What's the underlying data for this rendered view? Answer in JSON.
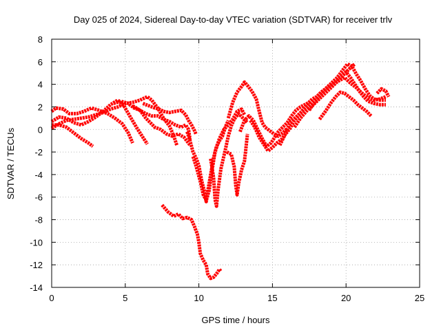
{
  "chart_data": {
    "type": "line",
    "title": "Day 025 of 2024, Sidereal Day-to-day VTEC variation (SDTVAR) for receiver trlv",
    "xlabel": "GPS time / hours",
    "ylabel": "SDTVAR / TECUs",
    "xlim": [
      0,
      25
    ],
    "ylim": [
      -14,
      8
    ],
    "xticks": [
      "0",
      "5",
      "10",
      "15",
      "20",
      "25"
    ],
    "yticks": [
      "-14",
      "-12",
      "-10",
      "-8",
      "-6",
      "-4",
      "-2",
      "0",
      "2",
      "4",
      "6",
      "8"
    ],
    "grid": true,
    "legend": "none",
    "marker": "plus",
    "color": "#ff0000",
    "series": [
      {
        "points": [
          [
            0,
            0.4
          ],
          [
            0.5,
            0.4
          ],
          [
            1,
            0.2
          ],
          [
            1.5,
            -0.3
          ],
          [
            2,
            -0.8
          ],
          [
            2.5,
            -1.2
          ],
          [
            2.8,
            -1.5
          ]
        ]
      },
      {
        "points": [
          [
            0,
            1.6
          ],
          [
            0.3,
            1.9
          ],
          [
            0.8,
            1.8
          ],
          [
            1.2,
            1.4
          ],
          [
            1.7,
            1.4
          ],
          [
            2.2,
            1.6
          ],
          [
            2.7,
            1.9
          ],
          [
            3.2,
            1.7
          ],
          [
            3.8,
            1.4
          ],
          [
            4.3,
            1.0
          ],
          [
            4.8,
            0.5
          ],
          [
            5.2,
            -0.3
          ],
          [
            5.5,
            -1.2
          ]
        ]
      },
      {
        "points": [
          [
            0,
            0.7
          ],
          [
            0.5,
            1.1
          ],
          [
            1,
            1.0
          ],
          [
            1.5,
            0.6
          ],
          [
            2,
            0.4
          ],
          [
            2.5,
            0.7
          ],
          [
            3,
            1.1
          ],
          [
            3.5,
            1.6
          ],
          [
            4,
            2.2
          ],
          [
            4.5,
            2.6
          ],
          [
            4.9,
            2.1
          ],
          [
            5.3,
            1.2
          ],
          [
            5.8,
            0.1
          ],
          [
            6.2,
            -0.7
          ],
          [
            6.5,
            -1.3
          ]
        ]
      },
      {
        "points": [
          [
            0,
            0.1
          ],
          [
            0.5,
            0.5
          ],
          [
            1,
            0.8
          ],
          [
            1.5,
            0.9
          ],
          [
            2,
            1.0
          ],
          [
            2.5,
            1.1
          ],
          [
            3,
            1.3
          ],
          [
            3.5,
            1.5
          ],
          [
            4,
            1.8
          ],
          [
            4.5,
            2.0
          ],
          [
            5,
            2.3
          ],
          [
            5.5,
            2.4
          ],
          [
            6,
            2.6
          ],
          [
            6.5,
            2.9
          ],
          [
            6.8,
            2.6
          ],
          [
            7.2,
            1.9
          ],
          [
            7.6,
            1.0
          ],
          [
            8,
            0.3
          ],
          [
            8.3,
            -0.6
          ],
          [
            8.5,
            -1.4
          ]
        ]
      },
      {
        "points": [
          [
            4.2,
            2.3
          ],
          [
            4.7,
            2.5
          ],
          [
            5.2,
            2.3
          ],
          [
            5.6,
            1.9
          ],
          [
            6,
            1.7
          ],
          [
            6.4,
            1.4
          ],
          [
            6.8,
            1.2
          ],
          [
            7.2,
            1.2
          ],
          [
            7.6,
            0.9
          ],
          [
            8,
            0.7
          ],
          [
            8.4,
            0.4
          ],
          [
            8.8,
            0.2
          ],
          [
            9.1,
            0.4
          ],
          [
            9.3,
            0.0
          ],
          [
            9.4,
            -0.9
          ]
        ]
      },
      {
        "points": [
          [
            5.5,
            2.1
          ],
          [
            6,
            1.7
          ],
          [
            6.4,
            1.0
          ],
          [
            6.7,
            0.6
          ],
          [
            7,
            0.2
          ],
          [
            7.4,
            0.0
          ],
          [
            7.8,
            -0.4
          ],
          [
            8.2,
            -0.6
          ],
          [
            8.6,
            -0.4
          ],
          [
            9,
            -0.7
          ],
          [
            9.4,
            -1.4
          ]
        ]
      },
      {
        "points": [
          [
            6.2,
            2.3
          ],
          [
            6.6,
            2.1
          ],
          [
            7,
            1.9
          ],
          [
            7.3,
            1.8
          ],
          [
            7.6,
            1.6
          ],
          [
            8,
            1.5
          ],
          [
            8.4,
            1.6
          ],
          [
            8.8,
            1.7
          ],
          [
            9.1,
            1.3
          ],
          [
            9.3,
            0.8
          ],
          [
            9.5,
            0.4
          ],
          [
            9.7,
            -0.1
          ],
          [
            9.8,
            -0.4
          ]
        ]
      },
      {
        "points": [
          [
            7.5,
            -6.7
          ],
          [
            7.9,
            -7.3
          ],
          [
            8.3,
            -7.7
          ],
          [
            8.6,
            -7.5
          ],
          [
            8.9,
            -7.9
          ],
          [
            9.2,
            -7.8
          ],
          [
            9.5,
            -8.0
          ],
          [
            9.7,
            -8.6
          ],
          [
            9.9,
            -9.3
          ],
          [
            10,
            -10.0
          ],
          [
            10.1,
            -11.0
          ],
          [
            10.3,
            -11.6
          ],
          [
            10.5,
            -12.0
          ],
          [
            10.6,
            -12.8
          ],
          [
            10.8,
            -13.2
          ],
          [
            11,
            -13.1
          ],
          [
            11.2,
            -12.8
          ],
          [
            11.4,
            -12.4
          ],
          [
            11.5,
            -12.6
          ]
        ]
      },
      {
        "points": [
          [
            9.2,
            -0.2
          ],
          [
            9.4,
            -1.0
          ],
          [
            9.6,
            -2.0
          ],
          [
            9.8,
            -2.5
          ],
          [
            10,
            -3.2
          ],
          [
            10.2,
            -4.6
          ],
          [
            10.4,
            -5.6
          ],
          [
            10.5,
            -6.4
          ],
          [
            10.6,
            -5.5
          ],
          [
            10.8,
            -4.0
          ],
          [
            11,
            -2.5
          ],
          [
            11.2,
            -1.5
          ],
          [
            11.4,
            -1.0
          ],
          [
            11.6,
            -0.6
          ],
          [
            11.8,
            0.2
          ],
          [
            12,
            0.8
          ]
        ]
      },
      {
        "points": [
          [
            9.6,
            -2.4
          ],
          [
            9.8,
            -3.2
          ],
          [
            10.1,
            -4.6
          ],
          [
            10.3,
            -5.8
          ],
          [
            10.5,
            -6.3
          ],
          [
            10.7,
            -5.4
          ],
          [
            10.9,
            -3.6
          ],
          [
            11.1,
            -2.0
          ],
          [
            11.4,
            -0.8
          ],
          [
            11.7,
            0.0
          ],
          [
            12,
            0.4
          ],
          [
            12.3,
            0.9
          ],
          [
            12.6,
            1.6
          ],
          [
            12.9,
            1.8
          ],
          [
            13.1,
            1.3
          ]
        ]
      },
      {
        "points": [
          [
            10.8,
            -2.6
          ],
          [
            11,
            -4.3
          ],
          [
            11.1,
            -6.2
          ],
          [
            11.2,
            -6.8
          ],
          [
            11.3,
            -5.4
          ],
          [
            11.5,
            -3.5
          ],
          [
            11.8,
            -1.8
          ],
          [
            12,
            -0.6
          ],
          [
            12.2,
            0.3
          ],
          [
            12.4,
            0.9
          ],
          [
            12.7,
            1.4
          ],
          [
            13,
            1.0
          ],
          [
            13.3,
            0.6
          ]
        ]
      },
      {
        "points": [
          [
            11.9,
            -2.0
          ],
          [
            12.2,
            -2.2
          ],
          [
            12.4,
            -3.3
          ],
          [
            12.5,
            -4.9
          ],
          [
            12.6,
            -5.8
          ],
          [
            12.7,
            -4.8
          ],
          [
            12.9,
            -3.6
          ],
          [
            13.1,
            -2.8
          ],
          [
            13.2,
            -1.6
          ],
          [
            13.3,
            -0.4
          ]
        ]
      },
      {
        "points": [
          [
            12.0,
            1.0
          ],
          [
            12.3,
            2.4
          ],
          [
            12.6,
            3.3
          ],
          [
            12.9,
            3.8
          ],
          [
            13.1,
            4.2
          ],
          [
            13.3,
            3.9
          ],
          [
            13.6,
            3.4
          ],
          [
            13.9,
            2.7
          ],
          [
            14.1,
            1.6
          ],
          [
            14.3,
            0.6
          ],
          [
            14.5,
            0.2
          ],
          [
            14.8,
            -0.1
          ],
          [
            15.1,
            -0.4
          ],
          [
            15.4,
            -0.6
          ],
          [
            15.7,
            -0.3
          ],
          [
            16,
            0.1
          ]
        ]
      },
      {
        "points": [
          [
            12.8,
            -0.2
          ],
          [
            13.1,
            0.8
          ],
          [
            13.4,
            1.2
          ],
          [
            13.7,
            0.8
          ],
          [
            14,
            0.0
          ],
          [
            14.3,
            -0.8
          ],
          [
            14.6,
            -1.5
          ],
          [
            14.9,
            -1.2
          ],
          [
            15.2,
            -0.6
          ],
          [
            15.4,
            -0.2
          ],
          [
            15.7,
            0.2
          ],
          [
            16,
            0.6
          ],
          [
            16.3,
            1.2
          ],
          [
            16.6,
            1.7
          ],
          [
            16.9,
            2.0
          ],
          [
            17.2,
            2.2
          ],
          [
            17.5,
            2.4
          ]
        ]
      },
      {
        "points": [
          [
            13.5,
            0.8
          ],
          [
            13.8,
            0.2
          ],
          [
            14.1,
            -0.7
          ],
          [
            14.4,
            -1.3
          ],
          [
            14.7,
            -1.9
          ],
          [
            15,
            -1.6
          ],
          [
            15.3,
            -1.2
          ],
          [
            15.6,
            -0.9
          ],
          [
            15.9,
            -0.4
          ],
          [
            16.2,
            0.1
          ],
          [
            16.5,
            0.8
          ],
          [
            16.8,
            1.3
          ],
          [
            17.1,
            1.8
          ],
          [
            17.4,
            2.3
          ],
          [
            17.7,
            2.7
          ],
          [
            18,
            2.9
          ],
          [
            18.3,
            3.3
          ],
          [
            18.6,
            3.6
          ],
          [
            18.9,
            3.9
          ],
          [
            19.2,
            4.2
          ],
          [
            19.5,
            4.5
          ],
          [
            19.8,
            4.8
          ],
          [
            20.1,
            5.2
          ],
          [
            20.4,
            5.6
          ],
          [
            20.6,
            5.8
          ]
        ]
      },
      {
        "points": [
          [
            15.5,
            -1.4
          ],
          [
            15.8,
            -0.6
          ],
          [
            16.2,
            0.6
          ],
          [
            16.6,
            1.1
          ],
          [
            17,
            1.6
          ],
          [
            17.4,
            2.0
          ],
          [
            17.8,
            2.6
          ],
          [
            18.2,
            3.1
          ],
          [
            18.6,
            3.6
          ],
          [
            19,
            4.1
          ],
          [
            19.4,
            4.6
          ],
          [
            19.8,
            5.3
          ],
          [
            20.1,
            5.8
          ],
          [
            20.4,
            5.6
          ],
          [
            20.7,
            4.9
          ],
          [
            21,
            4.3
          ],
          [
            21.3,
            3.6
          ],
          [
            21.6,
            3.0
          ],
          [
            21.9,
            2.7
          ],
          [
            22.3,
            2.6
          ],
          [
            22.7,
            2.6
          ]
        ]
      },
      {
        "points": [
          [
            16.5,
            0.2
          ],
          [
            16.9,
            1.0
          ],
          [
            17.3,
            1.6
          ],
          [
            17.7,
            2.1
          ],
          [
            18.1,
            2.6
          ],
          [
            18.5,
            3.1
          ],
          [
            18.9,
            3.6
          ],
          [
            19.3,
            4.1
          ],
          [
            19.7,
            4.7
          ],
          [
            20,
            5.1
          ],
          [
            20.3,
            4.6
          ],
          [
            20.6,
            4.0
          ],
          [
            20.9,
            3.4
          ],
          [
            21.2,
            2.9
          ],
          [
            21.5,
            2.5
          ],
          [
            21.9,
            2.3
          ],
          [
            22.3,
            2.2
          ],
          [
            22.7,
            2.2
          ]
        ]
      },
      {
        "points": [
          [
            18.2,
            0.9
          ],
          [
            18.6,
            1.6
          ],
          [
            19,
            2.4
          ],
          [
            19.3,
            2.9
          ],
          [
            19.6,
            3.3
          ],
          [
            19.9,
            3.2
          ],
          [
            20.2,
            2.9
          ],
          [
            20.5,
            2.6
          ],
          [
            20.8,
            2.2
          ],
          [
            21.1,
            1.9
          ],
          [
            21.4,
            1.6
          ],
          [
            21.7,
            1.2
          ]
        ]
      },
      {
        "points": [
          [
            17.5,
            1.7
          ],
          [
            17.9,
            2.5
          ],
          [
            18.3,
            3.1
          ],
          [
            18.7,
            3.6
          ],
          [
            19.1,
            4.0
          ],
          [
            19.5,
            4.3
          ],
          [
            19.9,
            4.6
          ],
          [
            20.3,
            4.1
          ],
          [
            20.7,
            3.7
          ],
          [
            21.1,
            3.2
          ],
          [
            21.5,
            2.8
          ],
          [
            21.9,
            2.6
          ],
          [
            22.3,
            2.7
          ],
          [
            22.7,
            2.9
          ]
        ]
      },
      {
        "points": [
          [
            22.1,
            3.2
          ],
          [
            22.4,
            3.6
          ],
          [
            22.7,
            3.4
          ],
          [
            22.9,
            2.9
          ]
        ]
      }
    ]
  }
}
